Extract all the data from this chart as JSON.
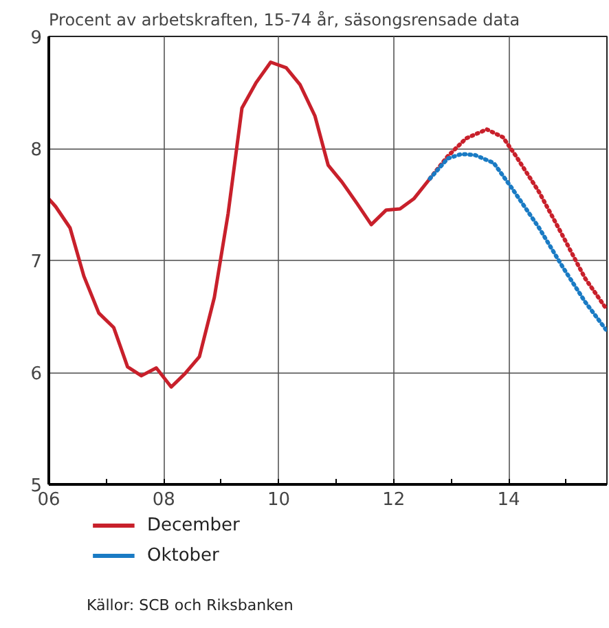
{
  "chart_data": {
    "type": "line",
    "title": "Procent av arbetskraften, 15-74 år, säsongsrensade data",
    "xlim": [
      2006,
      2015.71
    ],
    "ylim": [
      5,
      9
    ],
    "xticks": [
      {
        "value": 2006,
        "label": "06"
      },
      {
        "value": 2007,
        "label": null
      },
      {
        "value": 2008,
        "label": "08"
      },
      {
        "value": 2009,
        "label": null
      },
      {
        "value": 2010,
        "label": "10"
      },
      {
        "value": 2011,
        "label": null
      },
      {
        "value": 2012,
        "label": "12"
      },
      {
        "value": 2013,
        "label": null
      },
      {
        "value": 2014,
        "label": "14"
      },
      {
        "value": 2015,
        "label": null
      }
    ],
    "yticks": [
      5,
      6,
      7,
      8,
      9
    ],
    "grid": true,
    "legend": "bottom",
    "series": [
      {
        "name": "December",
        "color": "#c8202b",
        "line_style": "solid",
        "x": [
          2006.0,
          2006.12,
          2006.37,
          2006.61,
          2006.87,
          2007.13,
          2007.37,
          2007.61,
          2007.87,
          2008.13,
          2008.37,
          2008.62,
          2008.88,
          2009.12,
          2009.36,
          2009.61,
          2009.86,
          2010.13,
          2010.37,
          2010.63,
          2010.86,
          2011.1,
          2011.36,
          2011.61,
          2011.87,
          2012.11,
          2012.35,
          2012.63
        ],
        "values": [
          7.55,
          7.48,
          7.29,
          6.86,
          6.53,
          6.4,
          6.05,
          5.97,
          6.04,
          5.87,
          5.99,
          6.14,
          6.67,
          7.42,
          8.36,
          8.59,
          8.77,
          8.72,
          8.57,
          8.29,
          7.85,
          7.7,
          7.51,
          7.32,
          7.45,
          7.46,
          7.55,
          7.73
        ]
      },
      {
        "color": "#c8202b",
        "line_style": "dotted",
        "x": [
          2012.63,
          2012.94,
          2013.26,
          2013.62,
          2013.9,
          2014.13,
          2014.53,
          2014.93,
          2015.33,
          2015.71
        ],
        "values": [
          7.73,
          7.93,
          8.09,
          8.17,
          8.1,
          7.93,
          7.61,
          7.23,
          6.84,
          6.56
        ]
      },
      {
        "name": "Oktober",
        "color": "#1a7bc4",
        "line_style": "dotted",
        "x": [
          2012.63,
          2012.94,
          2013.18,
          2013.42,
          2013.74,
          2014.05,
          2014.53,
          2014.93,
          2015.33,
          2015.71
        ],
        "values": [
          7.73,
          7.91,
          7.95,
          7.94,
          7.87,
          7.65,
          7.29,
          6.95,
          6.63,
          6.37
        ]
      }
    ],
    "annotations": [
      "Källor: SCB och Riksbanken"
    ]
  }
}
